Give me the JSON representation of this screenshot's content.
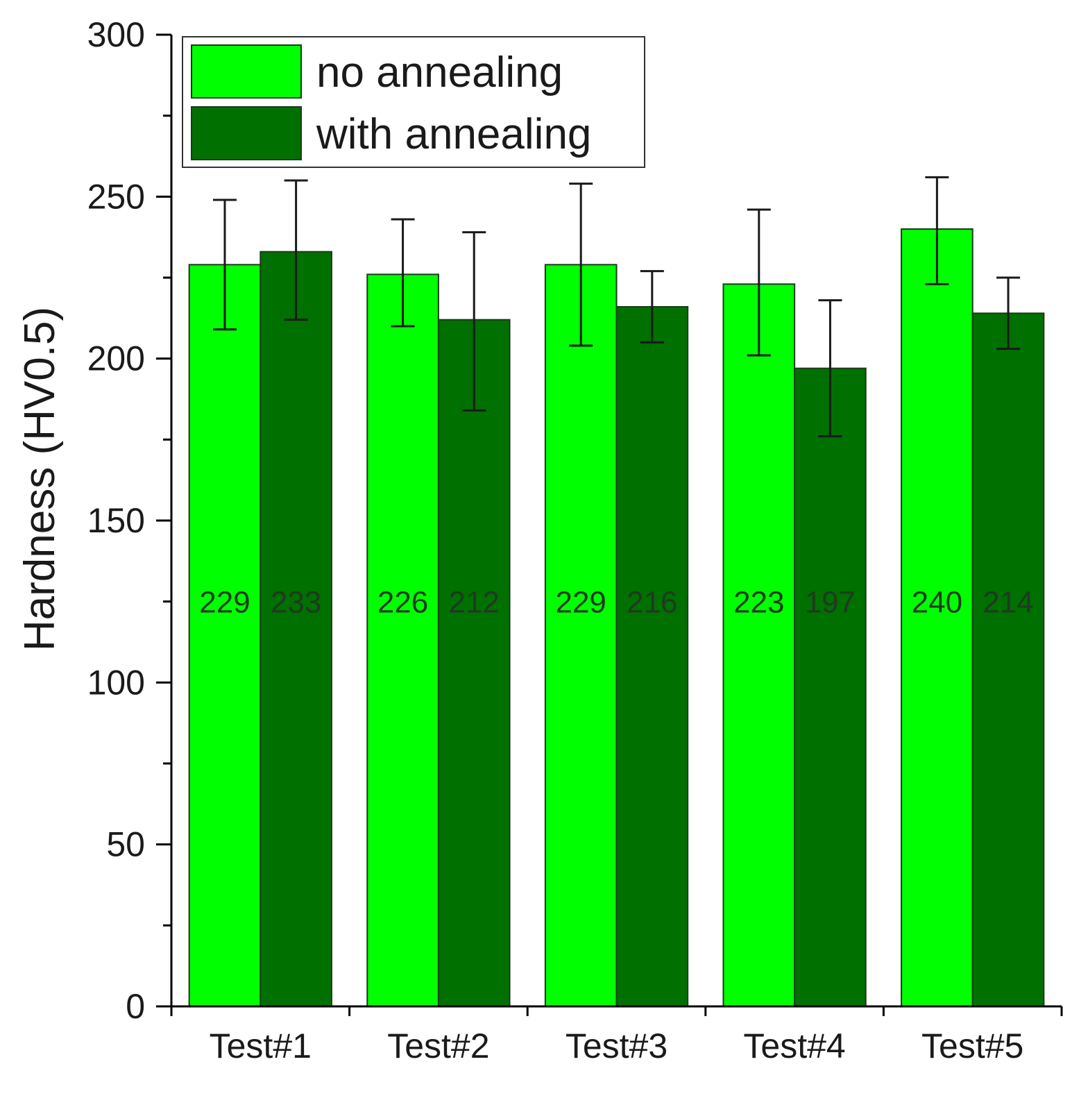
{
  "chart_data": {
    "type": "bar",
    "title": "",
    "xlabel": "",
    "ylabel": "Hardness (HV0.5)",
    "ylim": [
      0,
      300
    ],
    "yticks": [
      0,
      50,
      100,
      150,
      200,
      250,
      300
    ],
    "ytick_labels": [
      "0",
      "50",
      "100",
      "150",
      "200",
      "250",
      "300"
    ],
    "categories": [
      "Test#1",
      "Test#2",
      "Test#3",
      "Test#4",
      "Test#5"
    ],
    "legend_position": "top-left",
    "series": [
      {
        "name": "no annealing",
        "color": "#00ff00",
        "values": [
          229,
          226,
          229,
          223,
          240
        ],
        "labels": [
          "229",
          "226",
          "229",
          "223",
          "240"
        ],
        "error_upper": [
          249,
          243,
          254,
          246,
          256
        ],
        "error_lower": [
          209,
          210,
          204,
          201,
          223
        ]
      },
      {
        "name": "with annealing",
        "color": "#007000",
        "values": [
          233,
          212,
          216,
          197,
          214
        ],
        "labels": [
          "233",
          "212",
          "216",
          "197",
          "214"
        ],
        "error_upper": [
          255,
          239,
          227,
          218,
          225
        ],
        "error_lower": [
          212,
          184,
          205,
          176,
          203
        ]
      }
    ],
    "data_label_value": 125
  }
}
